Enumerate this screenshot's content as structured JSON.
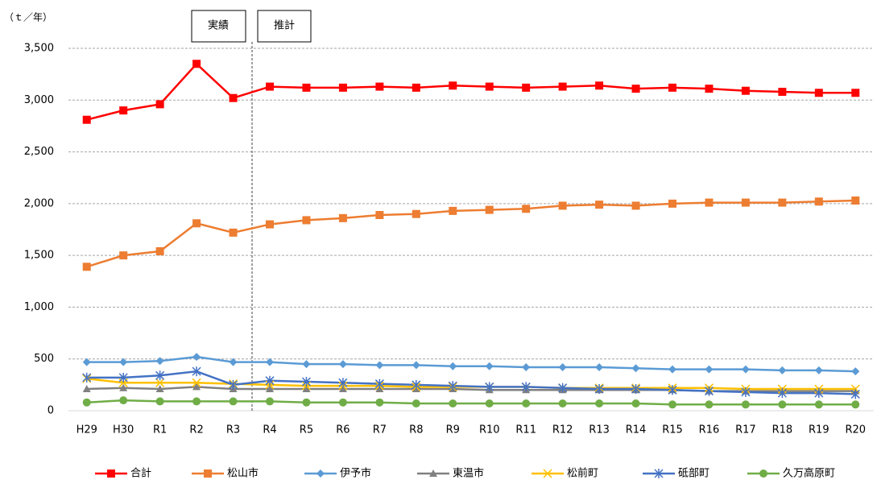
{
  "chart_data": {
    "type": "line",
    "y_unit": "（ｔ／年）",
    "annotations": [
      "実績",
      "推計"
    ],
    "categories": [
      "H29",
      "H30",
      "R1",
      "R2",
      "R3",
      "R4",
      "R5",
      "R6",
      "R7",
      "R8",
      "R9",
      "R10",
      "R11",
      "R12",
      "R13",
      "R14",
      "R15",
      "R16",
      "R17",
      "R18",
      "R19",
      "R20"
    ],
    "series": [
      {
        "name": "合計",
        "color": "#ff0000",
        "marker": "square",
        "values": [
          2810,
          2900,
          2960,
          3350,
          3020,
          3130,
          3120,
          3120,
          3130,
          3120,
          3140,
          3130,
          3120,
          3130,
          3140,
          3110,
          3120,
          3110,
          3090,
          3080,
          3070,
          3070
        ]
      },
      {
        "name": "松山市",
        "color": "#ed7d31",
        "marker": "square",
        "values": [
          1390,
          1500,
          1540,
          1810,
          1720,
          1800,
          1840,
          1860,
          1890,
          1900,
          1930,
          1940,
          1950,
          1980,
          1990,
          1980,
          2000,
          2010,
          2010,
          2010,
          2020,
          2030
        ]
      },
      {
        "name": "伊予市",
        "color": "#5b9bd5",
        "marker": "diamond",
        "values": [
          470,
          470,
          480,
          520,
          470,
          470,
          450,
          450,
          440,
          440,
          430,
          430,
          420,
          420,
          420,
          410,
          400,
          400,
          400,
          390,
          390,
          380
        ]
      },
      {
        "name": "東温市",
        "color": "#808080",
        "marker": "triangle",
        "values": [
          210,
          220,
          210,
          230,
          210,
          210,
          210,
          210,
          210,
          210,
          210,
          200,
          200,
          200,
          200,
          200,
          200,
          190,
          190,
          190,
          190,
          190
        ]
      },
      {
        "name": "松前町",
        "color": "#ffc000",
        "marker": "x",
        "values": [
          310,
          270,
          270,
          270,
          260,
          250,
          240,
          240,
          240,
          230,
          230,
          230,
          230,
          220,
          220,
          220,
          220,
          220,
          210,
          210,
          210,
          210
        ]
      },
      {
        "name": "砥部町",
        "color": "#4472c4",
        "marker": "star",
        "values": [
          320,
          320,
          340,
          380,
          250,
          290,
          280,
          270,
          260,
          250,
          240,
          230,
          230,
          220,
          210,
          210,
          200,
          190,
          180,
          170,
          170,
          160
        ]
      },
      {
        "name": "久万高原町",
        "color": "#70ad47",
        "marker": "circle",
        "values": [
          80,
          100,
          90,
          90,
          90,
          90,
          80,
          80,
          80,
          70,
          70,
          70,
          70,
          70,
          70,
          70,
          60,
          60,
          60,
          60,
          60,
          60
        ]
      }
    ],
    "ylim": [
      0,
      3500
    ],
    "yticks": [
      0,
      500,
      {
        "value": 1000,
        "label": "1,000"
      },
      {
        "value": 1500,
        "label": "1,500"
      },
      {
        "value": 2000,
        "label": "2,000"
      },
      {
        "value": 2500,
        "label": "2,500"
      },
      {
        "value": 3000,
        "label": "3,000"
      },
      {
        "value": 3500,
        "label": "3,500"
      }
    ],
    "grid": true
  }
}
